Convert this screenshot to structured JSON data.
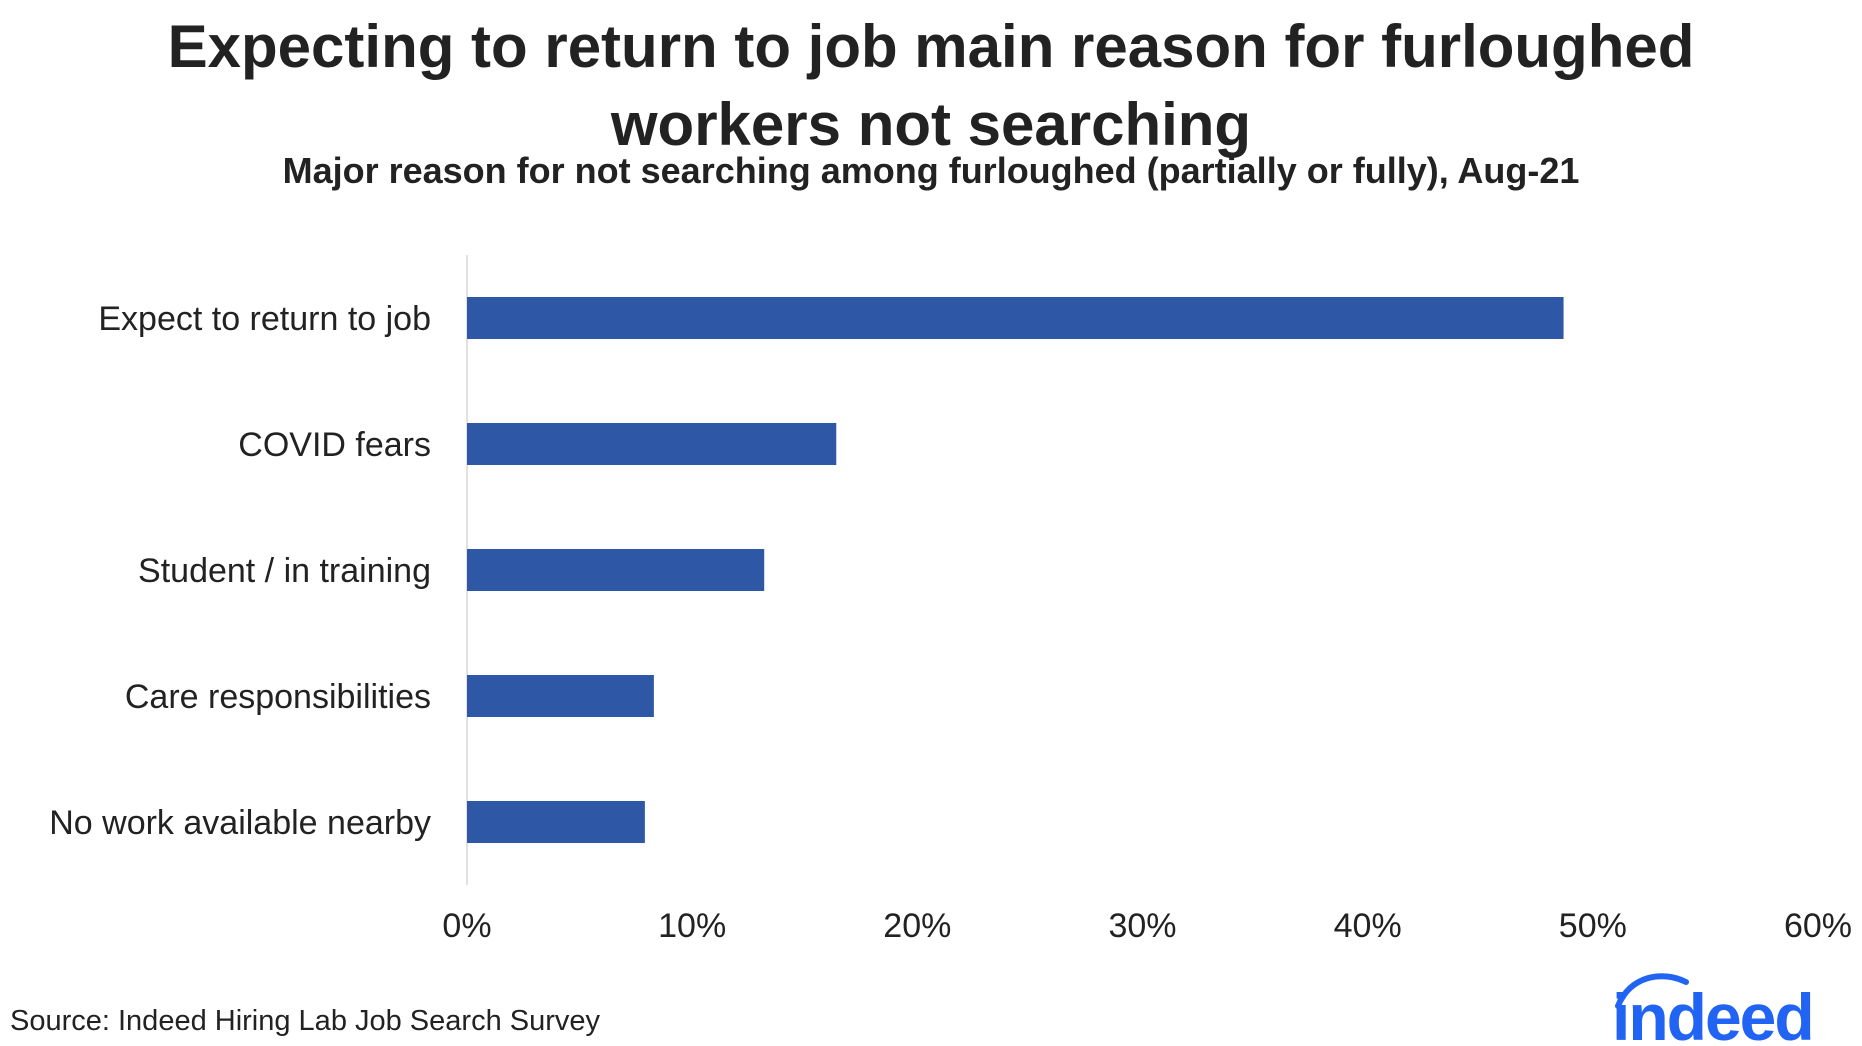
{
  "title": "Expecting to return to job main reason for furloughed workers not searching",
  "subtitle": "Major reason for not searching among furloughed (partially or fully), Aug-21",
  "source": "Source: Indeed Hiring Lab Job Search Survey",
  "logo_text": "indeed",
  "colors": {
    "bar": "#2E58A6",
    "logo": "#2164F3",
    "axis": "#d9d9d9",
    "text": "#222222"
  },
  "chart_data": {
    "type": "bar",
    "orientation": "horizontal",
    "title": "Expecting to return to job main reason for furloughed workers not searching",
    "subtitle": "Major reason for not searching among furloughed (partially or fully), Aug-21",
    "categories": [
      "Expect to return to job",
      "COVID fears",
      "Student / in training",
      "Care responsibilities",
      "No work available nearby"
    ],
    "values": [
      48.7,
      16.4,
      13.2,
      8.3,
      7.9
    ],
    "unit": "%",
    "xlim": [
      0,
      60
    ],
    "xticks": [
      0,
      10,
      20,
      30,
      40,
      50,
      60
    ],
    "xtick_labels": [
      "0%",
      "10%",
      "20%",
      "30%",
      "40%",
      "50%",
      "60%"
    ],
    "xlabel": "",
    "ylabel": "",
    "grid": false,
    "legend": "none"
  }
}
